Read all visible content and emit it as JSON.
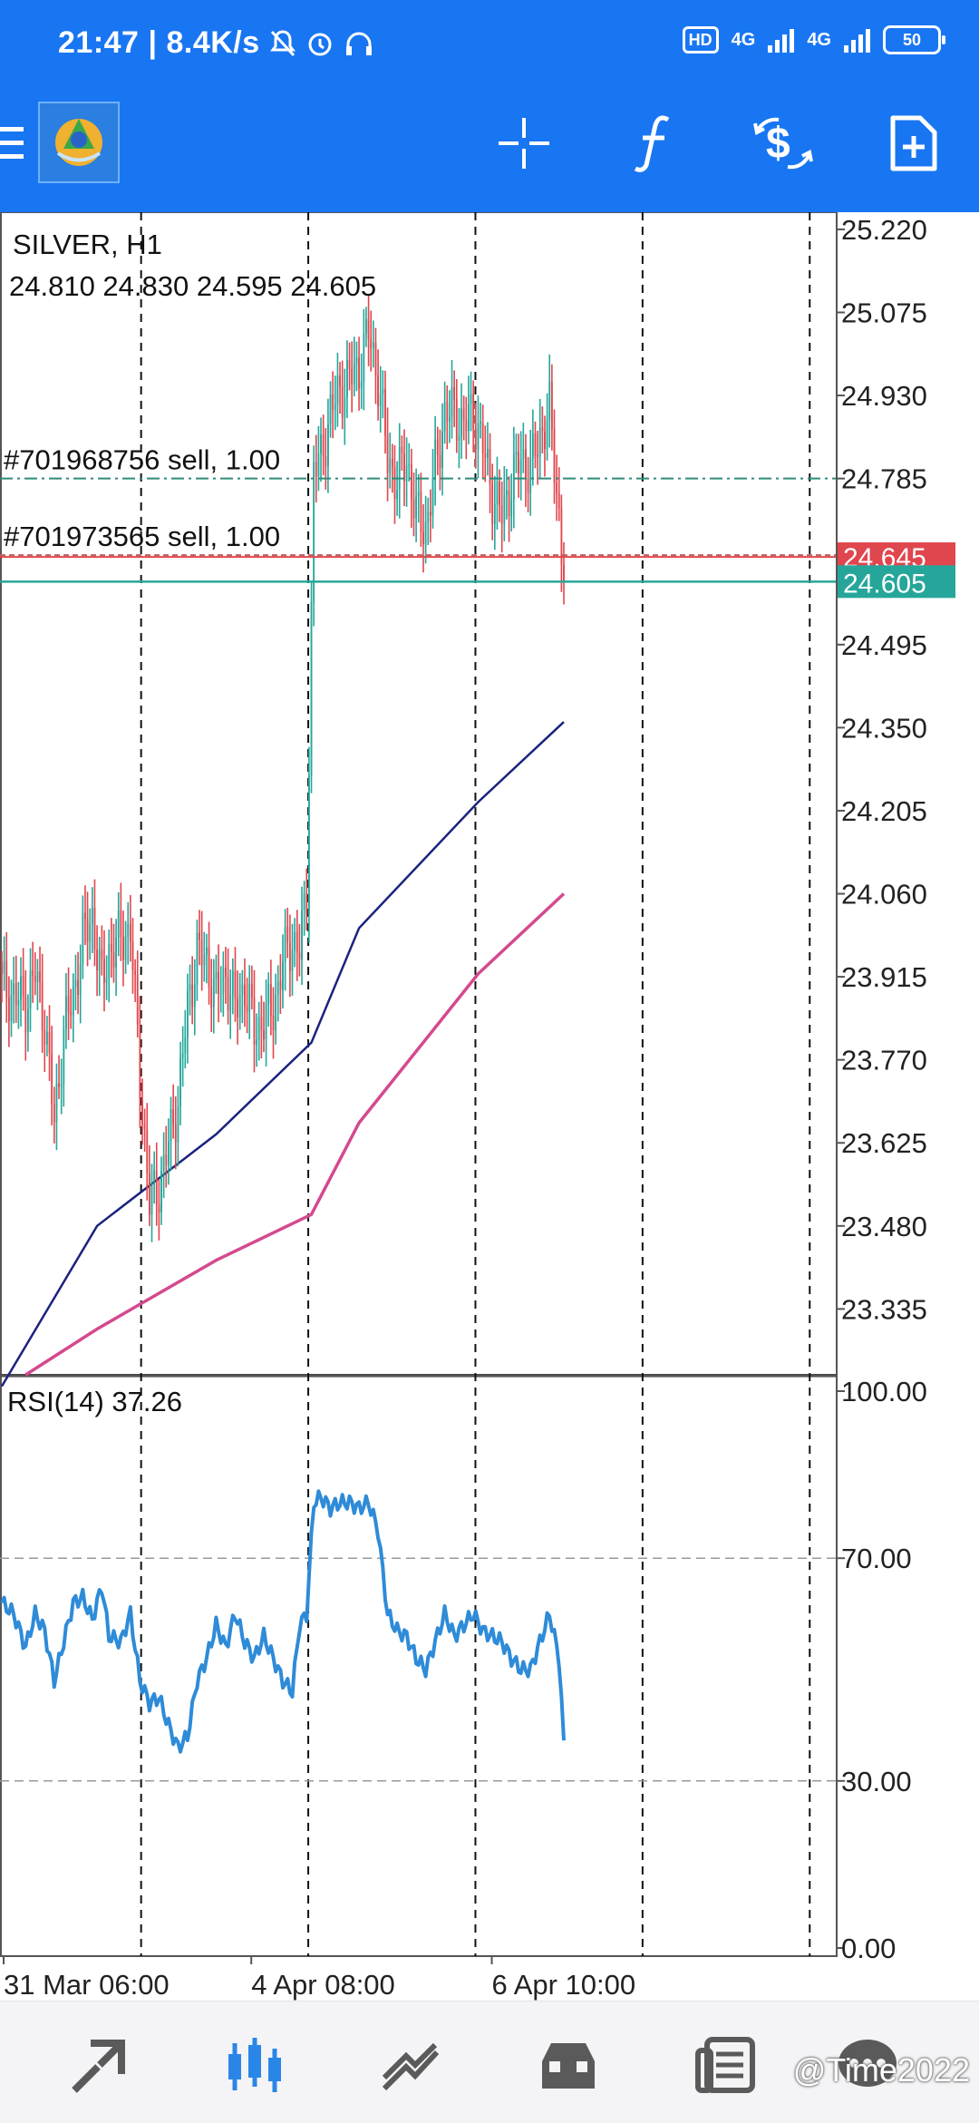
{
  "status_bar": {
    "time": "21:47",
    "speed": "8.4K/s",
    "network_1": "4G",
    "network_2": "4G",
    "battery": "50",
    "hd": "HD"
  },
  "toolbar": {
    "icons": [
      "menu-icon",
      "app-logo",
      "crosshair-icon",
      "indicators-icon",
      "trade-icon",
      "new-order-icon"
    ]
  },
  "chart_data": [
    {
      "type": "candlestick",
      "symbol_label": "SILVER, H1",
      "ohlc_label": "24.810 24.830 24.595 24.605",
      "price_ticks": [
        "25.220",
        "25.075",
        "24.930",
        "24.785",
        "24.495",
        "24.350",
        "24.205",
        "24.060",
        "23.915",
        "23.770",
        "23.625",
        "23.480",
        "23.335"
      ],
      "price_range": [
        23.22,
        25.25
      ],
      "orders": [
        {
          "label": "#701968756 sell, 1.00",
          "price": 24.785,
          "color": "#2e8b7a"
        },
        {
          "label": "#701973565 sell, 1.00",
          "price": 24.645,
          "color": "#c06060"
        }
      ],
      "ask_badge": {
        "text": "24.645",
        "price": 24.645,
        "color": "#e0464d"
      },
      "bid_badge": {
        "text": "24.605",
        "price": 24.605,
        "color": "#26a69a"
      },
      "up_color": "#26a69a",
      "down_color": "#e0464d",
      "close_path": [
        [
          0,
          23.9
        ],
        [
          5,
          23.88
        ],
        [
          10,
          23.87
        ],
        [
          14,
          23.92
        ],
        [
          18,
          23.84
        ],
        [
          22,
          23.66
        ],
        [
          26,
          23.82
        ],
        [
          30,
          23.88
        ],
        [
          34,
          23.98
        ],
        [
          38,
          24.02
        ],
        [
          42,
          23.9
        ],
        [
          45,
          23.96
        ],
        [
          50,
          23.98
        ],
        [
          54,
          24.0
        ],
        [
          58,
          23.74
        ],
        [
          62,
          23.52
        ],
        [
          66,
          23.55
        ],
        [
          70,
          23.62
        ],
        [
          74,
          23.7
        ],
        [
          78,
          23.86
        ],
        [
          82,
          23.96
        ],
        [
          86,
          23.94
        ],
        [
          90,
          23.88
        ],
        [
          94,
          23.92
        ],
        [
          98,
          23.86
        ],
        [
          102,
          23.9
        ],
        [
          106,
          23.82
        ],
        [
          110,
          23.84
        ],
        [
          114,
          23.86
        ],
        [
          118,
          23.94
        ],
        [
          122,
          23.98
        ],
        [
          125,
          23.96
        ],
        [
          128,
          24.06
        ],
        [
          131,
          24.8
        ],
        [
          134,
          24.82
        ],
        [
          138,
          24.9
        ],
        [
          142,
          24.94
        ],
        [
          146,
          24.96
        ],
        [
          150,
          24.98
        ],
        [
          154,
          25.04
        ],
        [
          158,
          24.96
        ],
        [
          162,
          24.82
        ],
        [
          166,
          24.78
        ],
        [
          170,
          24.82
        ],
        [
          174,
          24.72
        ],
        [
          178,
          24.7
        ],
        [
          182,
          24.8
        ],
        [
          186,
          24.9
        ],
        [
          190,
          24.9
        ],
        [
          194,
          24.88
        ],
        [
          198,
          24.9
        ],
        [
          202,
          24.84
        ],
        [
          206,
          24.76
        ],
        [
          210,
          24.72
        ],
        [
          214,
          24.78
        ],
        [
          218,
          24.82
        ],
        [
          222,
          24.8
        ],
        [
          226,
          24.86
        ],
        [
          230,
          24.9
        ],
        [
          234,
          24.72
        ],
        [
          236,
          24.605
        ]
      ],
      "ma_blue": [
        [
          0,
          23.2
        ],
        [
          40,
          23.48
        ],
        [
          90,
          23.64
        ],
        [
          130,
          23.8
        ],
        [
          150,
          24.0
        ],
        [
          200,
          24.22
        ],
        [
          236,
          24.36
        ]
      ],
      "ma_pink": [
        [
          10,
          23.22
        ],
        [
          40,
          23.3
        ],
        [
          90,
          23.42
        ],
        [
          130,
          23.5
        ],
        [
          150,
          23.66
        ],
        [
          200,
          23.92
        ],
        [
          236,
          24.06
        ]
      ],
      "blue_color": "#1a237e",
      "pink_color": "#d4498f"
    },
    {
      "type": "line",
      "label": "RSI(14) 37.26",
      "y_ticks": [
        "100.00",
        "70.00",
        "30.00",
        "0.00"
      ],
      "ylim": [
        0,
        100
      ],
      "levels": [
        70,
        30
      ],
      "series": [
        {
          "color": "#2e8bd8",
          "values": [
            [
              0,
              62
            ],
            [
              5,
              60
            ],
            [
              10,
              54
            ],
            [
              14,
              60
            ],
            [
              18,
              57
            ],
            [
              22,
              48
            ],
            [
              26,
              55
            ],
            [
              30,
              62
            ],
            [
              34,
              63
            ],
            [
              38,
              59
            ],
            [
              42,
              65
            ],
            [
              45,
              56
            ],
            [
              50,
              55
            ],
            [
              54,
              60
            ],
            [
              58,
              48
            ],
            [
              62,
              44
            ],
            [
              66,
              45
            ],
            [
              70,
              40
            ],
            [
              74,
              36
            ],
            [
              78,
              38
            ],
            [
              82,
              48
            ],
            [
              86,
              52
            ],
            [
              90,
              58
            ],
            [
              94,
              54
            ],
            [
              98,
              60
            ],
            [
              102,
              55
            ],
            [
              106,
              52
            ],
            [
              110,
              56
            ],
            [
              114,
              52
            ],
            [
              118,
              48
            ],
            [
              122,
              46
            ],
            [
              125,
              58
            ],
            [
              128,
              60
            ],
            [
              131,
              80
            ],
            [
              134,
              81
            ],
            [
              138,
              79
            ],
            [
              142,
              80
            ],
            [
              146,
              80
            ],
            [
              150,
              79
            ],
            [
              154,
              80
            ],
            [
              158,
              75
            ],
            [
              162,
              60
            ],
            [
              166,
              57
            ],
            [
              170,
              56
            ],
            [
              174,
              52
            ],
            [
              178,
              50
            ],
            [
              182,
              55
            ],
            [
              186,
              60
            ],
            [
              190,
              56
            ],
            [
              194,
              58
            ],
            [
              198,
              60
            ],
            [
              202,
              57
            ],
            [
              206,
              56
            ],
            [
              210,
              55
            ],
            [
              214,
              52
            ],
            [
              218,
              50
            ],
            [
              222,
              50
            ],
            [
              226,
              55
            ],
            [
              230,
              60
            ],
            [
              234,
              52
            ],
            [
              236,
              37.26
            ]
          ]
        }
      ]
    }
  ],
  "time_axis": {
    "labels": [
      {
        "text": "31 Mar 06:00",
        "bar": 0
      },
      {
        "text": "4 Apr 08:00",
        "bar": 104
      },
      {
        "text": "6 Apr 10:00",
        "bar": 205
      }
    ],
    "gridline_bars": [
      45,
      99,
      153,
      207,
      261
    ]
  },
  "bottom_nav": {
    "items": [
      "quotes-icon",
      "chart-icon",
      "trade-icon",
      "history-icon",
      "news-icon",
      "chat-icon"
    ]
  },
  "watermark": "@Time2022"
}
